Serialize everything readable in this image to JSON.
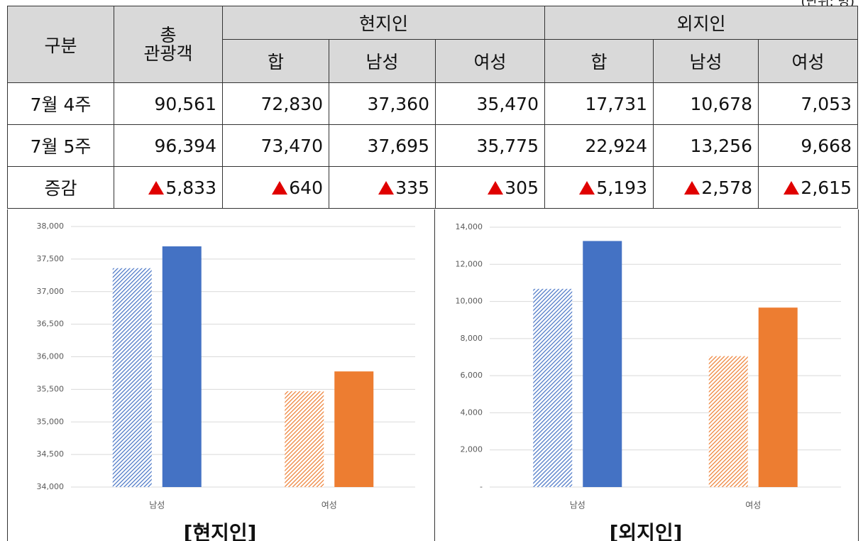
{
  "unit": "(단위: 명)",
  "table": {
    "header": [
      "구분",
      "총\n관광객",
      "현지인",
      "외지인"
    ],
    "subheader": [
      "합",
      "남성",
      "여성",
      "합",
      "남성",
      "여성"
    ],
    "rows": [
      {
        "label": "7월 4주",
        "cells": [
          "90,561",
          "72,830",
          "37,360",
          "35,470",
          "17,731",
          "10,678",
          "7,053"
        ]
      },
      {
        "label": "7월 5주",
        "cells": [
          "96,394",
          "73,470",
          "37,695",
          "35,775",
          "22,924",
          "13,256",
          "9,668"
        ]
      }
    ],
    "change": {
      "label": "증감",
      "cells": [
        "5,833",
        "640",
        "335",
        "305",
        "5,193",
        "2,578",
        "2,615"
      ]
    }
  },
  "chart_data": [
    {
      "type": "bar",
      "title": "[현지인]",
      "categories": [
        "남성",
        "여성"
      ],
      "colors": [
        "#4472c4",
        "#ed7d31"
      ],
      "series": [
        {
          "pattern": "hatch",
          "values": [
            37360,
            35470
          ]
        },
        {
          "pattern": "solid",
          "values": [
            37695,
            35775
          ]
        }
      ],
      "ylim": [
        34000,
        38000
      ],
      "yticks": [
        {
          "value": 34000,
          "label": "34,000"
        },
        {
          "value": 34500,
          "label": "34,500"
        },
        {
          "value": 35000,
          "label": "35,000"
        },
        {
          "value": 35500,
          "label": "35,500"
        },
        {
          "value": 36000,
          "label": "36,000"
        },
        {
          "value": 36500,
          "label": "36,500"
        },
        {
          "value": 37000,
          "label": "37,000"
        },
        {
          "value": 37500,
          "label": "37,500"
        },
        {
          "value": 38000,
          "label": "38,000"
        }
      ],
      "grid": true
    },
    {
      "type": "bar",
      "title": "[외지인]",
      "categories": [
        "남성",
        "여성"
      ],
      "colors": [
        "#4472c4",
        "#ed7d31"
      ],
      "series": [
        {
          "pattern": "hatch",
          "values": [
            10678,
            7053
          ]
        },
        {
          "pattern": "solid",
          "values": [
            13256,
            9668
          ]
        }
      ],
      "ylim": [
        0,
        14000
      ],
      "yticks": [
        {
          "value": 0,
          "label": "-"
        },
        {
          "value": 2000,
          "label": "2,000"
        },
        {
          "value": 4000,
          "label": "4,000"
        },
        {
          "value": 6000,
          "label": "6,000"
        },
        {
          "value": 8000,
          "label": "8,000"
        },
        {
          "value": 10000,
          "label": "10,000"
        },
        {
          "value": 12000,
          "label": "12,000"
        },
        {
          "value": 14000,
          "label": "14,000"
        }
      ],
      "grid": true
    }
  ]
}
